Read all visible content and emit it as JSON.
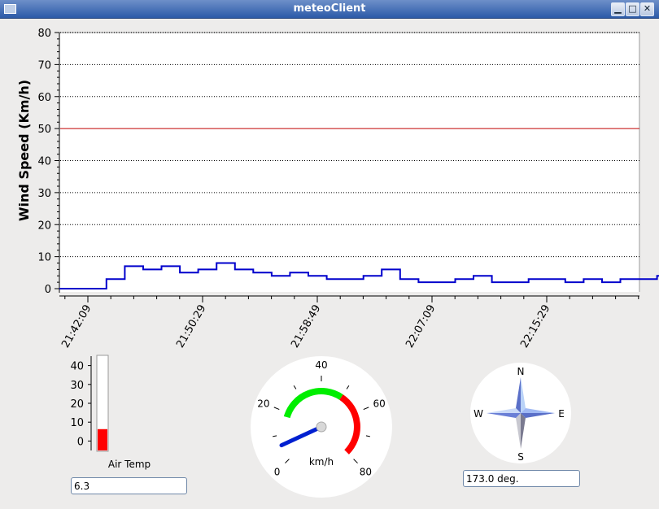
{
  "window": {
    "title": "meteoClient",
    "minimize_glyph": "▁",
    "maximize_glyph": "□",
    "close_glyph": "✕"
  },
  "chart_data": [
    {
      "type": "line",
      "title": "",
      "xlabel": "",
      "ylabel": "Wind Speed (Km/h)",
      "ylim": [
        0,
        80
      ],
      "yticks": [
        "0",
        "10",
        "20",
        "30",
        "40",
        "50",
        "60",
        "70",
        "80"
      ],
      "xticks": [
        "21:42:09",
        "21:50:29",
        "21:58:49",
        "22:07:09",
        "22:15:29"
      ],
      "grid": "horizontal dotted",
      "threshold": 50,
      "threshold_color": "#c00000",
      "series_color": "#0000cc",
      "series": [
        {
          "x": [
            "21:40:05",
            "21:41:10",
            "21:42:09",
            "21:43:30",
            "21:44:50",
            "21:46:10",
            "21:47:30",
            "21:48:50",
            "21:50:10",
            "21:51:30",
            "21:52:50",
            "21:54:10",
            "21:55:30",
            "21:56:50",
            "21:58:10",
            "21:59:30",
            "22:00:50",
            "22:02:10",
            "22:03:30",
            "22:04:50",
            "22:06:10",
            "22:07:30",
            "22:08:50",
            "22:10:10",
            "22:11:30",
            "22:12:50",
            "22:14:10",
            "22:15:30",
            "22:16:50",
            "22:18:10",
            "22:19:30",
            "22:20:50",
            "22:22:10",
            "22:23:30",
            "22:24:05"
          ],
          "values": [
            0,
            0,
            0,
            3,
            7,
            6,
            7,
            5,
            6,
            8,
            6,
            5,
            4,
            5,
            4,
            3,
            3,
            4,
            6,
            3,
            2,
            2,
            3,
            4,
            2,
            2,
            3,
            3,
            2,
            3,
            2,
            3,
            3,
            4,
            2
          ]
        }
      ]
    },
    {
      "type": "bar",
      "title": "",
      "xlabel": "Air Temp",
      "ylabel": "",
      "ylim": [
        -5,
        45
      ],
      "yticks": [
        "0",
        "10",
        "20",
        "30",
        "40"
      ],
      "values": [
        6.3
      ],
      "color": "#ff0000"
    }
  ],
  "thermometer": {
    "label": "Air Temp",
    "value_field": "6.3"
  },
  "speed_gauge": {
    "unit_label": "km/h",
    "scale_labels": [
      "0",
      "20",
      "40",
      "60",
      "80"
    ],
    "min": 0,
    "max": 80,
    "value": 6,
    "green_range": [
      18,
      50
    ],
    "red_range": [
      50,
      80
    ],
    "needle_color": "#0020d0"
  },
  "compass": {
    "labels": {
      "n": "N",
      "e": "E",
      "s": "S",
      "w": "W"
    },
    "heading_deg": 173.0,
    "value_field": "173.0 deg."
  }
}
